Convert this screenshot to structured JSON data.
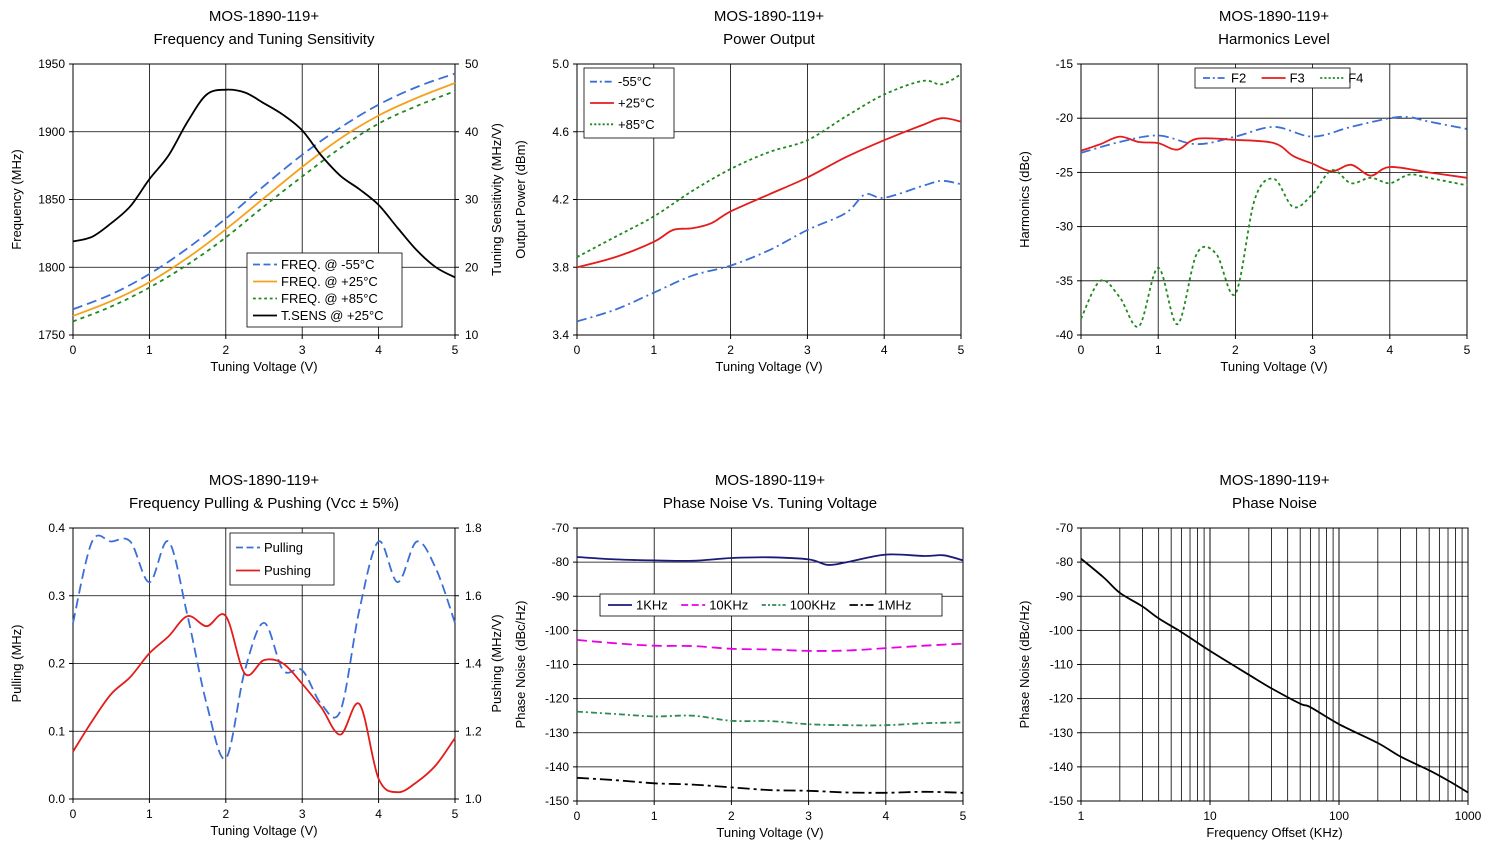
{
  "chart_data": [
    {
      "id": "c1",
      "type": "line",
      "title": "MOS-1890-119+",
      "subtitle": "Frequency and Tuning Sensitivity",
      "xlabel": "Tuning Voltage (V)",
      "ylabel": "Frequency (MHz)",
      "y2label": "Tuning Sensitivity (MHz/V)",
      "xlim": [
        0,
        5
      ],
      "ylim": [
        1750,
        1950
      ],
      "y2lim": [
        10,
        50
      ],
      "xticks": [
        "0",
        "1",
        "2",
        "3",
        "4",
        "5"
      ],
      "yticks": [
        "1750",
        "1800",
        "1850",
        "1900",
        "1950"
      ],
      "y2ticks": [
        "10",
        "20",
        "30",
        "40",
        "50"
      ],
      "grid": true,
      "legend_position": "bottom-right",
      "series": [
        {
          "name": "FREQ. @ -55°C",
          "axis": "y",
          "color": "#3a6fd8",
          "dash": "10,5",
          "x": [
            0,
            0.5,
            1,
            1.5,
            2,
            2.5,
            3,
            3.5,
            4,
            4.5,
            5
          ],
          "values": [
            1769,
            1780,
            1795,
            1814,
            1836,
            1860,
            1883,
            1903,
            1920,
            1933,
            1943
          ]
        },
        {
          "name": "FREQ. @ +25°C",
          "axis": "y",
          "color": "#f5a21b",
          "dash": "",
          "x": [
            0,
            0.5,
            1,
            1.5,
            2,
            2.5,
            3,
            3.5,
            4,
            4.5,
            5
          ],
          "values": [
            1764,
            1775,
            1789,
            1807,
            1828,
            1851,
            1874,
            1895,
            1912,
            1925,
            1936
          ]
        },
        {
          "name": "FREQ. @ +85°C",
          "axis": "y",
          "color": "#1e8a1e",
          "dash": "4,4",
          "x": [
            0,
            0.5,
            1,
            1.5,
            2,
            2.5,
            3,
            3.5,
            4,
            4.5,
            5
          ],
          "values": [
            1760,
            1771,
            1785,
            1802,
            1822,
            1845,
            1867,
            1888,
            1906,
            1919,
            1930
          ]
        },
        {
          "name": "T.SENS @ +25°C",
          "axis": "y2",
          "color": "#000000",
          "dash": "",
          "x": [
            0,
            0.25,
            0.5,
            0.75,
            1,
            1.25,
            1.5,
            1.75,
            2,
            2.25,
            2.5,
            2.75,
            3,
            3.25,
            3.5,
            3.75,
            4,
            4.25,
            4.5,
            4.75,
            5
          ],
          "values": [
            23.8,
            24.5,
            26.5,
            29,
            33,
            36.5,
            41.5,
            45.5,
            46.2,
            45.8,
            44.2,
            42.5,
            40.2,
            36.5,
            33.5,
            31.5,
            29.2,
            25.8,
            22.5,
            20,
            18.5
          ]
        }
      ]
    },
    {
      "id": "c2",
      "type": "line",
      "title": "MOS-1890-119+",
      "subtitle": "Power Output",
      "xlabel": "Tuning Voltage (V)",
      "ylabel": "Output Power (dBm)",
      "xlim": [
        0,
        5
      ],
      "ylim": [
        3.4,
        5.0
      ],
      "xticks": [
        "0",
        "1",
        "2",
        "3",
        "4",
        "5"
      ],
      "yticks": [
        "3.4",
        "3.8",
        "4.2",
        "4.6",
        "5.0"
      ],
      "grid": true,
      "legend_position": "top-left",
      "series": [
        {
          "name": "-55°C",
          "color": "#3a6fd8",
          "dash": "10,4,2,4",
          "x": [
            0,
            0.5,
            1,
            1.5,
            2,
            2.5,
            3,
            3.5,
            3.75,
            4,
            4.5,
            4.75,
            5
          ],
          "values": [
            3.48,
            3.55,
            3.65,
            3.75,
            3.81,
            3.9,
            4.02,
            4.12,
            4.23,
            4.21,
            4.28,
            4.31,
            4.29
          ]
        },
        {
          "name": "+25°C",
          "color": "#e41c1c",
          "dash": "",
          "x": [
            0,
            0.5,
            1,
            1.25,
            1.5,
            1.75,
            2,
            2.5,
            3,
            3.5,
            4,
            4.5,
            4.75,
            5
          ],
          "values": [
            3.8,
            3.86,
            3.95,
            4.02,
            4.03,
            4.06,
            4.13,
            4.23,
            4.33,
            4.45,
            4.55,
            4.64,
            4.68,
            4.66
          ]
        },
        {
          "name": "+85°C",
          "color": "#1e8a1e",
          "dash": "3,3",
          "x": [
            0,
            0.5,
            1,
            1.5,
            2,
            2.5,
            3,
            3.5,
            4,
            4.5,
            4.75,
            5
          ],
          "values": [
            3.86,
            3.98,
            4.1,
            4.25,
            4.38,
            4.48,
            4.55,
            4.69,
            4.82,
            4.9,
            4.88,
            4.94
          ]
        }
      ]
    },
    {
      "id": "c3",
      "type": "line",
      "title": "MOS-1890-119+",
      "subtitle": "Harmonics Level",
      "xlabel": "Tuning Voltage (V)",
      "ylabel": "Harmonics (dBc)",
      "xlim": [
        0,
        5
      ],
      "ylim": [
        -40,
        -15
      ],
      "xticks": [
        "0",
        "1",
        "2",
        "3",
        "4",
        "5"
      ],
      "yticks": [
        "-40",
        "-35",
        "-30",
        "-25",
        "-20",
        "-15"
      ],
      "grid": true,
      "legend_position": "top-center",
      "series": [
        {
          "name": "F2",
          "color": "#3a6fd8",
          "dash": "10,4,2,4",
          "x": [
            0,
            0.5,
            1,
            1.5,
            2,
            2.5,
            3,
            3.5,
            4,
            4.25,
            4.5,
            5
          ],
          "values": [
            -23.2,
            -22.2,
            -21.6,
            -22.4,
            -21.7,
            -20.8,
            -21.7,
            -20.8,
            -20.0,
            -19.9,
            -20.3,
            -21.0
          ]
        },
        {
          "name": "F3",
          "color": "#e41c1c",
          "dash": "",
          "x": [
            0,
            0.25,
            0.5,
            0.75,
            1,
            1.25,
            1.5,
            2,
            2.5,
            2.75,
            3,
            3.25,
            3.5,
            3.75,
            4,
            4.5,
            5
          ],
          "values": [
            -23.0,
            -22.4,
            -21.7,
            -22.2,
            -22.3,
            -22.9,
            -21.9,
            -22.0,
            -22.3,
            -23.5,
            -24.2,
            -24.9,
            -24.3,
            -25.3,
            -24.5,
            -25.0,
            -25.5
          ]
        },
        {
          "name": "F4",
          "color": "#1e8a1e",
          "dash": "3,3",
          "x": [
            0,
            0.25,
            0.5,
            0.75,
            1,
            1.25,
            1.5,
            1.75,
            2,
            2.25,
            2.5,
            2.75,
            3,
            3.25,
            3.5,
            3.75,
            4,
            4.25,
            4.5,
            5
          ],
          "values": [
            -38.5,
            -35.0,
            -36.5,
            -39.2,
            -33.8,
            -39.0,
            -32.5,
            -32.5,
            -36.2,
            -27.5,
            -25.6,
            -28.2,
            -27.0,
            -24.8,
            -26.0,
            -25.5,
            -26.0,
            -25.2,
            -25.5,
            -26.2
          ]
        }
      ]
    },
    {
      "id": "c4",
      "type": "line",
      "title": "MOS-1890-119+",
      "subtitle": "Frequency Pulling & Pushing (Vcc ± 5%)",
      "xlabel": "Tuning Voltage (V)",
      "ylabel": "Pulling (MHz)",
      "y2label": "Pushing (MHz/V)",
      "xlim": [
        0,
        5
      ],
      "ylim": [
        0.0,
        0.4
      ],
      "y2lim": [
        1.0,
        1.8
      ],
      "xticks": [
        "0",
        "1",
        "2",
        "3",
        "4",
        "5"
      ],
      "yticks": [
        "0.0",
        "0.1",
        "0.2",
        "0.3",
        "0.4"
      ],
      "y2ticks": [
        "1.0",
        "1.2",
        "1.4",
        "1.6",
        "1.8"
      ],
      "grid": true,
      "legend_position": "top-right",
      "series": [
        {
          "name": "Pulling",
          "axis": "y",
          "color": "#3a6fd8",
          "dash": "10,5",
          "x": [
            0,
            0.25,
            0.5,
            0.75,
            1,
            1.25,
            1.5,
            1.75,
            2,
            2.25,
            2.5,
            2.75,
            3,
            3.25,
            3.5,
            3.75,
            4,
            4.25,
            4.5,
            4.75,
            5
          ],
          "values": [
            0.26,
            0.38,
            0.38,
            0.38,
            0.32,
            0.38,
            0.27,
            0.14,
            0.06,
            0.19,
            0.26,
            0.19,
            0.19,
            0.14,
            0.13,
            0.28,
            0.38,
            0.32,
            0.38,
            0.34,
            0.26
          ]
        },
        {
          "name": "Pushing",
          "axis": "y2",
          "color": "#e41c1c",
          "dash": "",
          "x": [
            0,
            0.25,
            0.5,
            0.75,
            1,
            1.25,
            1.5,
            1.75,
            2,
            2.25,
            2.5,
            2.75,
            3,
            3.25,
            3.5,
            3.75,
            4,
            4.25,
            4.5,
            4.75,
            5
          ],
          "values": [
            1.14,
            1.23,
            1.31,
            1.36,
            1.43,
            1.48,
            1.54,
            1.51,
            1.54,
            1.37,
            1.41,
            1.4,
            1.34,
            1.27,
            1.19,
            1.28,
            1.06,
            1.02,
            1.05,
            1.1,
            1.18
          ]
        }
      ]
    },
    {
      "id": "c5",
      "type": "line",
      "title": "MOS-1890-119+",
      "subtitle": "Phase Noise Vs. Tuning Voltage",
      "xlabel": "Tuning Voltage (V)",
      "ylabel": "Phase Noise (dBc/Hz)",
      "xlim": [
        0,
        5
      ],
      "ylim": [
        -150,
        -70
      ],
      "xticks": [
        "0",
        "1",
        "2",
        "3",
        "4",
        "5"
      ],
      "yticks": [
        "-150",
        "-140",
        "-130",
        "-120",
        "-110",
        "-100",
        "-90",
        "-80",
        "-70"
      ],
      "grid": true,
      "legend_position": "upper-center",
      "series": [
        {
          "name": "1KHz",
          "color": "#1a1a7a",
          "dash": "",
          "x": [
            0,
            0.5,
            1,
            1.5,
            2,
            2.5,
            3,
            3.25,
            3.5,
            4,
            4.5,
            4.75,
            5
          ],
          "values": [
            -78.5,
            -79.2,
            -79.5,
            -79.6,
            -78.8,
            -78.6,
            -79.2,
            -80.8,
            -80.0,
            -77.8,
            -78.2,
            -78.0,
            -79.5
          ]
        },
        {
          "name": "10KHz",
          "color": "#e800e8",
          "dash": "10,5",
          "x": [
            0,
            0.5,
            1,
            1.5,
            2,
            2.5,
            3,
            3.5,
            4,
            4.5,
            5
          ],
          "values": [
            -102.8,
            -103.8,
            -104.5,
            -104.6,
            -105.4,
            -105.6,
            -106.0,
            -105.9,
            -105.2,
            -104.5,
            -103.9
          ]
        },
        {
          "name": "100KHz",
          "color": "#2e8b57",
          "dash": "6,3,2,3",
          "x": [
            0,
            0.5,
            1,
            1.5,
            2,
            2.5,
            3,
            3.5,
            4,
            4.5,
            5
          ],
          "values": [
            -123.8,
            -124.5,
            -125.2,
            -125.0,
            -126.5,
            -126.6,
            -127.5,
            -127.8,
            -127.8,
            -127.2,
            -127.0
          ]
        },
        {
          "name": "1MHz",
          "color": "#000000",
          "dash": "12,4,3,4",
          "x": [
            0,
            0.5,
            1,
            1.5,
            2,
            2.5,
            3,
            3.5,
            4,
            4.5,
            5
          ],
          "values": [
            -143.2,
            -143.9,
            -144.8,
            -145.2,
            -146.0,
            -146.8,
            -147.0,
            -147.5,
            -147.6,
            -147.3,
            -147.6
          ]
        }
      ]
    },
    {
      "id": "c6",
      "type": "line",
      "title": "MOS-1890-119+",
      "subtitle": "Phase Noise",
      "xlabel": "Frequency Offset (KHz)",
      "ylabel": "Phase Noise (dBc/Hz)",
      "xscale": "log",
      "xlim": [
        1,
        1000
      ],
      "ylim": [
        -150,
        -70
      ],
      "xticks": [
        "1",
        "10",
        "100",
        "1000"
      ],
      "yticks": [
        "-150",
        "-140",
        "-130",
        "-120",
        "-110",
        "-100",
        "-90",
        "-80",
        "-70"
      ],
      "grid": true,
      "series": [
        {
          "name": "",
          "color": "#000000",
          "dash": "",
          "x": [
            1,
            1.5,
            2,
            3,
            4,
            6,
            10,
            20,
            30,
            50,
            60,
            100,
            200,
            300,
            500,
            700,
            1000
          ],
          "values": [
            -79.0,
            -84.5,
            -89.0,
            -93.0,
            -96.5,
            -100.5,
            -106.0,
            -113.0,
            -117.0,
            -121.5,
            -122.5,
            -127.5,
            -133.0,
            -137.0,
            -141.0,
            -144.0,
            -147.5
          ]
        }
      ]
    }
  ]
}
